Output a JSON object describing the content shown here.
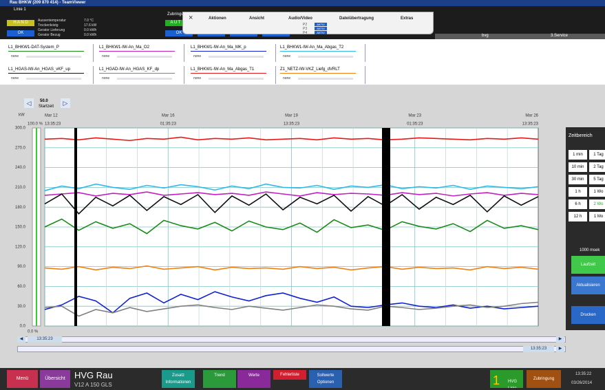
{
  "window_title": "Rau BHKW (209 870 414) - TeamViewer",
  "header": {
    "line_label": "Linie 1",
    "mode": "H A N D",
    "ok": "OK",
    "info": [
      {
        "label": "Aussentemperatur",
        "value": "7.0 °C"
      },
      {
        "label": "Trockenleistg",
        "value": "17.6 kW"
      },
      {
        "label": "Gerator Lieferung",
        "value": "0.0 kWh"
      },
      {
        "label": "Gerator Bezug",
        "value": "0.0 kWh"
      }
    ],
    "feed_label": "Zubringung",
    "feed_mode": "A U T",
    "feed_ok": [
      "OK",
      "OK",
      "OK",
      "OK"
    ],
    "right_tabs": [
      "bvg",
      "3.Service"
    ]
  },
  "toolbar": {
    "close": "×",
    "items": [
      "Aktionen",
      "Ansicht",
      "Audio/Video",
      "Dateiübertragung",
      "Extras"
    ],
    "ports": [
      "P2",
      "P3",
      "P4"
    ],
    "active": [
      "AKTIV",
      "AKTIV",
      "AKTIV"
    ]
  },
  "legend_status": "none",
  "nav": {
    "prev": "◁",
    "next": "▷",
    "start_value": "50.0",
    "start_label": "Startzeit"
  },
  "chart_data": {
    "type": "line",
    "ylabel": "kW",
    "ylim": [
      0,
      300
    ],
    "yticks": [
      {
        "value": 0,
        "label": "0.0"
      },
      {
        "value": 30,
        "label": "30.0"
      },
      {
        "value": 60,
        "label": "60.0"
      },
      {
        "value": 90,
        "label": "90.0"
      },
      {
        "value": 120,
        "label": "120.0"
      },
      {
        "value": 150,
        "label": "150.0"
      },
      {
        "value": 180,
        "label": "180.0"
      },
      {
        "value": 210,
        "label": "210.0"
      },
      {
        "value": 240,
        "label": "240.0"
      },
      {
        "value": 270,
        "label": "270.0"
      },
      {
        "value": 300,
        "label": "300.0"
      }
    ],
    "grid": true,
    "percent_top": "100.0 %",
    "percent_bottom": "0.0 %",
    "x_labels": [
      {
        "date": "Mar 12",
        "time": "13:35:23"
      },
      {
        "date": "Mar 16",
        "time": "01:35:23"
      },
      {
        "date": "Mar 19",
        "time": "13:35:23"
      },
      {
        "date": "Mar 23",
        "time": "01:35:23"
      },
      {
        "date": "Mar 26",
        "time": "13:35:23"
      }
    ],
    "series": [
      {
        "name": "L1_BHKW1-DAT-System_P",
        "color": "#1a8a1a",
        "values": [
          150,
          162,
          145,
          158,
          148,
          155,
          140,
          160,
          152,
          147,
          157,
          144,
          159,
          150,
          146,
          156,
          142,
          161,
          149,
          153,
          145,
          158,
          151,
          147,
          155,
          143,
          160,
          148,
          152,
          146
        ]
      },
      {
        "name": "L1_BHKW1-IW-An_Ma_O2",
        "color": "#c020c0",
        "values": [
          198,
          200,
          202,
          197,
          201,
          199,
          203,
          198,
          200,
          202,
          199,
          201,
          198,
          203,
          200,
          197,
          202,
          199,
          201,
          200,
          198,
          202,
          199,
          201,
          197,
          200,
          202,
          198,
          201,
          199
        ]
      },
      {
        "name": "L1_BHKW1-IW-An_Ma_MK_p",
        "color": "#1020d0",
        "values": [
          25,
          32,
          45,
          38,
          20,
          42,
          50,
          35,
          48,
          40,
          52,
          44,
          38,
          46,
          50,
          42,
          36,
          44,
          30,
          28,
          32,
          35,
          30,
          28,
          32,
          27,
          30,
          26,
          28,
          30
        ]
      },
      {
        "name": "L1_BHKW1-IW-An_Ma_Abgas_T2",
        "color": "#30b8e8",
        "values": [
          205,
          212,
          208,
          215,
          210,
          207,
          213,
          209,
          214,
          211,
          206,
          212,
          208,
          215,
          210,
          209,
          213,
          207,
          212,
          210,
          214,
          208,
          211,
          209,
          213,
          207,
          212,
          210,
          208,
          211
        ]
      },
      {
        "name": "L1_HGAS-IW-An_HGAS_vKF_up",
        "color": "#101010",
        "values": [
          185,
          200,
          170,
          195,
          182,
          198,
          175,
          196,
          184,
          199,
          172,
          197,
          183,
          200,
          176,
          195,
          185,
          198,
          174,
          196,
          182,
          199,
          177,
          195,
          184,
          198,
          173,
          197,
          183,
          196
        ]
      },
      {
        "name": "L1_HGAD-IW-An_HGAS_KF_dp",
        "color": "#808080",
        "values": [
          28,
          30,
          15,
          25,
          20,
          28,
          22,
          26,
          30,
          32,
          28,
          25,
          30,
          27,
          24,
          28,
          32,
          30,
          26,
          24,
          30,
          28,
          25,
          27,
          30,
          32,
          28,
          30,
          34,
          36
        ]
      },
      {
        "name": "L1_BHKW1-IW-An_Ma_Abgas_T1",
        "color": "#e81818",
        "values": [
          283,
          284,
          282,
          285,
          283,
          281,
          284,
          283,
          286,
          282,
          284,
          283,
          285,
          282,
          283,
          284,
          282,
          285,
          283,
          284,
          282,
          283,
          285,
          284,
          283,
          282,
          284,
          283,
          285,
          283
        ]
      },
      {
        "name": "Z1_NETZ-IW-VKZ_Liefg_dVRLT",
        "color": "#f08010",
        "values": [
          88,
          86,
          90,
          85,
          89,
          87,
          91,
          86,
          88,
          90,
          85,
          89,
          87,
          88,
          86,
          90,
          87,
          89,
          85,
          88,
          90,
          86,
          89,
          87,
          88,
          85,
          90,
          87,
          89,
          86
        ]
      }
    ]
  },
  "scroll": {
    "left": "◀",
    "right": "▶",
    "time_a": "13:35:23",
    "time_b": "13:35:23"
  },
  "side_panel": {
    "title": "Zeitbereich",
    "ranges": [
      "1 min",
      "1 Tag",
      "10 min",
      "2 Tag",
      "30 min",
      "5 Tag",
      "1 h",
      "1 Wo",
      "6 h",
      "2 Wo",
      "12 h",
      "1 Mo"
    ],
    "interval": "1000 msek",
    "run": "Laufzeit",
    "refresh": "Aktualisieren",
    "print": "Drucken"
  },
  "taskbar": {
    "menu": "Menü",
    "overview": "Übersicht",
    "plant": "HVG Rau",
    "engine": "V12 A 150 GLS",
    "buttons": [
      {
        "top": "Zusatz",
        "bottom": "Informationen"
      },
      {
        "top": "Trend",
        "bottom": ""
      },
      {
        "top": "Werte",
        "bottom": ""
      }
    ],
    "faults": "Fehlerliste",
    "setpoints_top": "Sollwerte",
    "setpoints_bottom": "Optionen",
    "line_num": "1",
    "line_top": "HVG",
    "line_bottom": "Linie",
    "feed": "Zubringung",
    "time": "13:35:22",
    "date": "03/26/2014"
  }
}
